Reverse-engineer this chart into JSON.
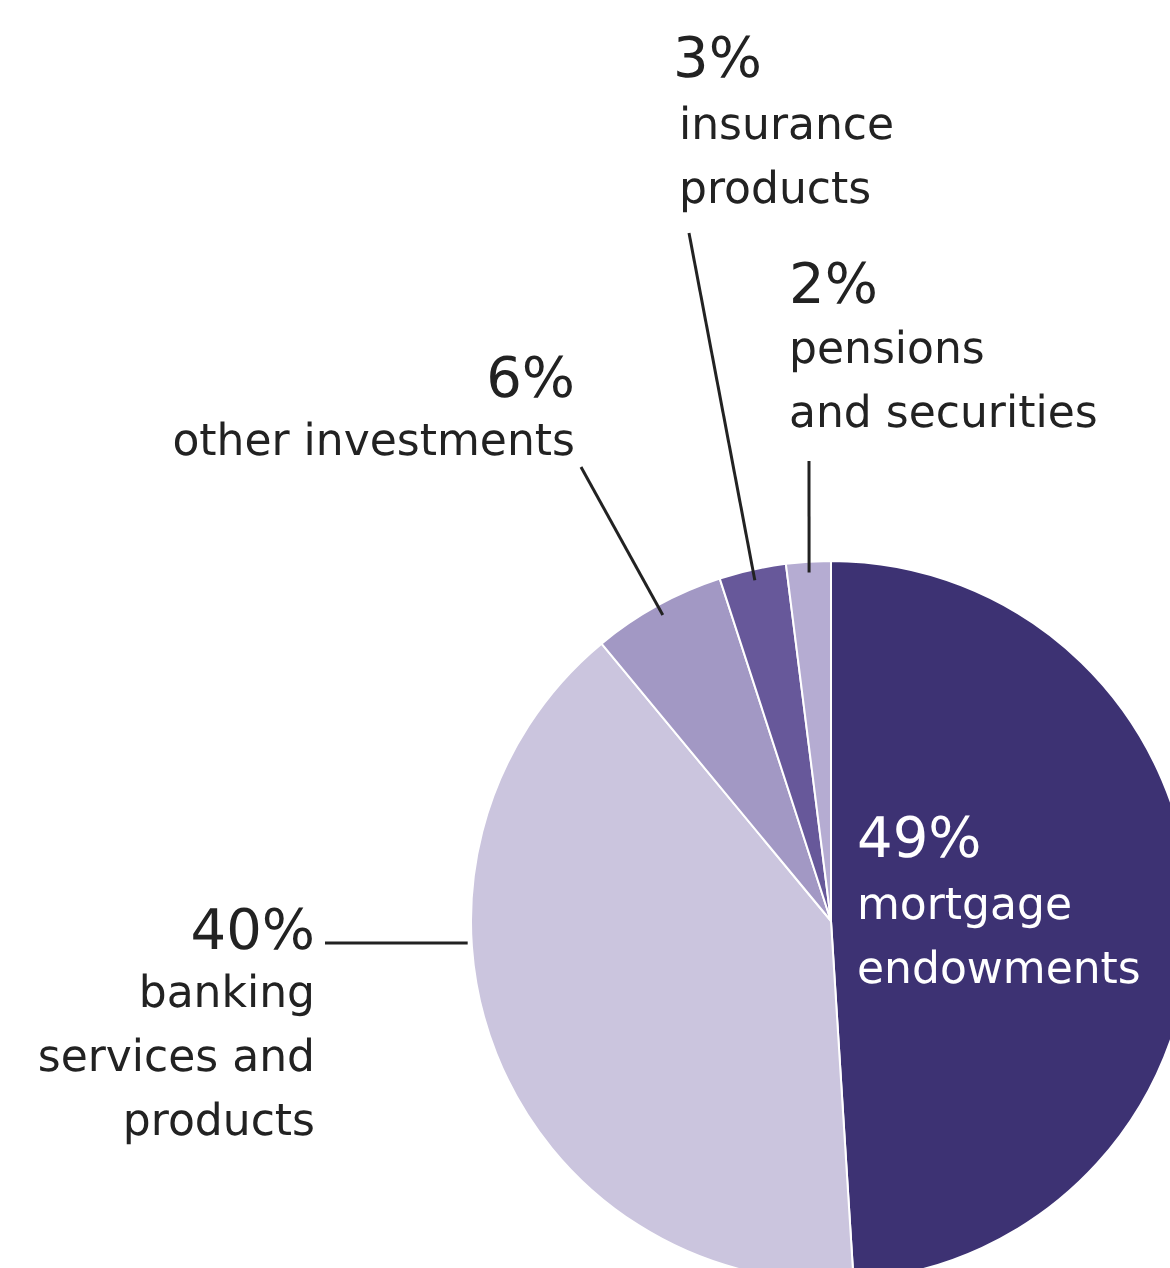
{
  "chart_data": {
    "type": "pie",
    "categories": [
      "mortgage endowments",
      "banking services and products",
      "other investments",
      "insurance products",
      "pensions and securities"
    ],
    "values": [
      49,
      40,
      6,
      3,
      2
    ],
    "value_labels": [
      "49%",
      "40%",
      "6%",
      "3%",
      "2%"
    ],
    "colors": [
      "#3d3273",
      "#cbc5de",
      "#a298c4",
      "#67589a",
      "#b5acd2"
    ]
  }
}
